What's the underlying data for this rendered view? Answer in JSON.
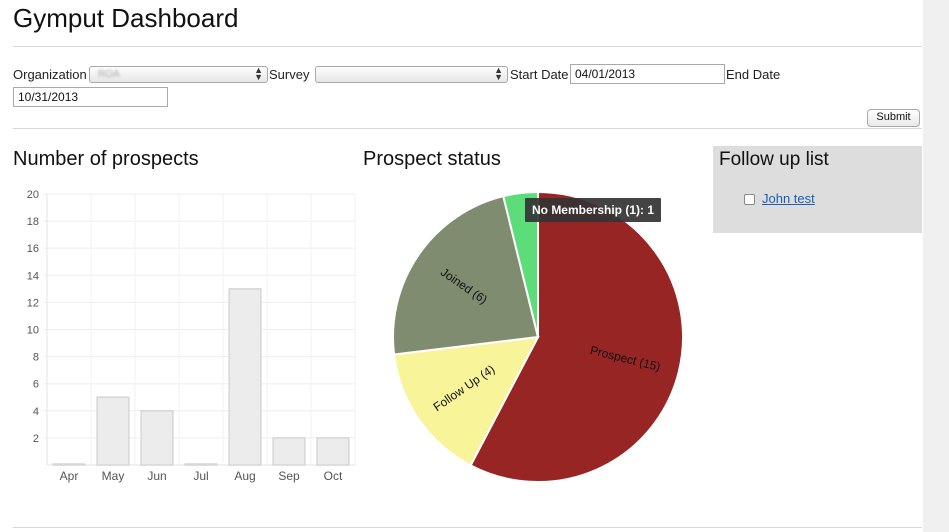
{
  "page": {
    "title": "Gymput Dashboard"
  },
  "filters": {
    "organization_label": "Organization",
    "organization_value": "ROA",
    "survey_label": "Survey",
    "survey_value": "",
    "start_label": "Start Date",
    "start_value": "04/01/2013",
    "end_label": "End Date",
    "end_value": "10/31/2013",
    "submit_label": "Submit"
  },
  "sections": {
    "prospects_title": "Number of prospects",
    "status_title": "Prospect status",
    "follow_title": "Follow up list"
  },
  "follow_up": {
    "items": [
      {
        "label": "John test",
        "checked": false
      }
    ]
  },
  "charts": [
    {
      "type": "bar",
      "categories": [
        "Apr",
        "May",
        "Jun",
        "Jul",
        "Aug",
        "Sep",
        "Oct"
      ],
      "values": [
        0,
        5,
        4,
        0,
        13,
        2,
        2
      ],
      "ylim": [
        0,
        20
      ],
      "yticks": [
        2,
        4,
        6,
        8,
        10,
        12,
        14,
        16,
        18,
        20
      ],
      "grid": true,
      "bar_color": "#ececec",
      "bar_stroke": "#d6d6d6"
    },
    {
      "type": "pie",
      "slices": [
        {
          "label": "Prospect (15)",
          "value": 15,
          "color": "#962523"
        },
        {
          "label": "Follow Up (4)",
          "value": 4,
          "color": "#f8f49a"
        },
        {
          "label": "Joined (6)",
          "value": 6,
          "color": "#7f8c6f"
        },
        {
          "label": "No Membership (1)",
          "value": 1,
          "color": "#5ddc7a"
        }
      ],
      "tooltip": "No Membership (1): 1"
    }
  ]
}
